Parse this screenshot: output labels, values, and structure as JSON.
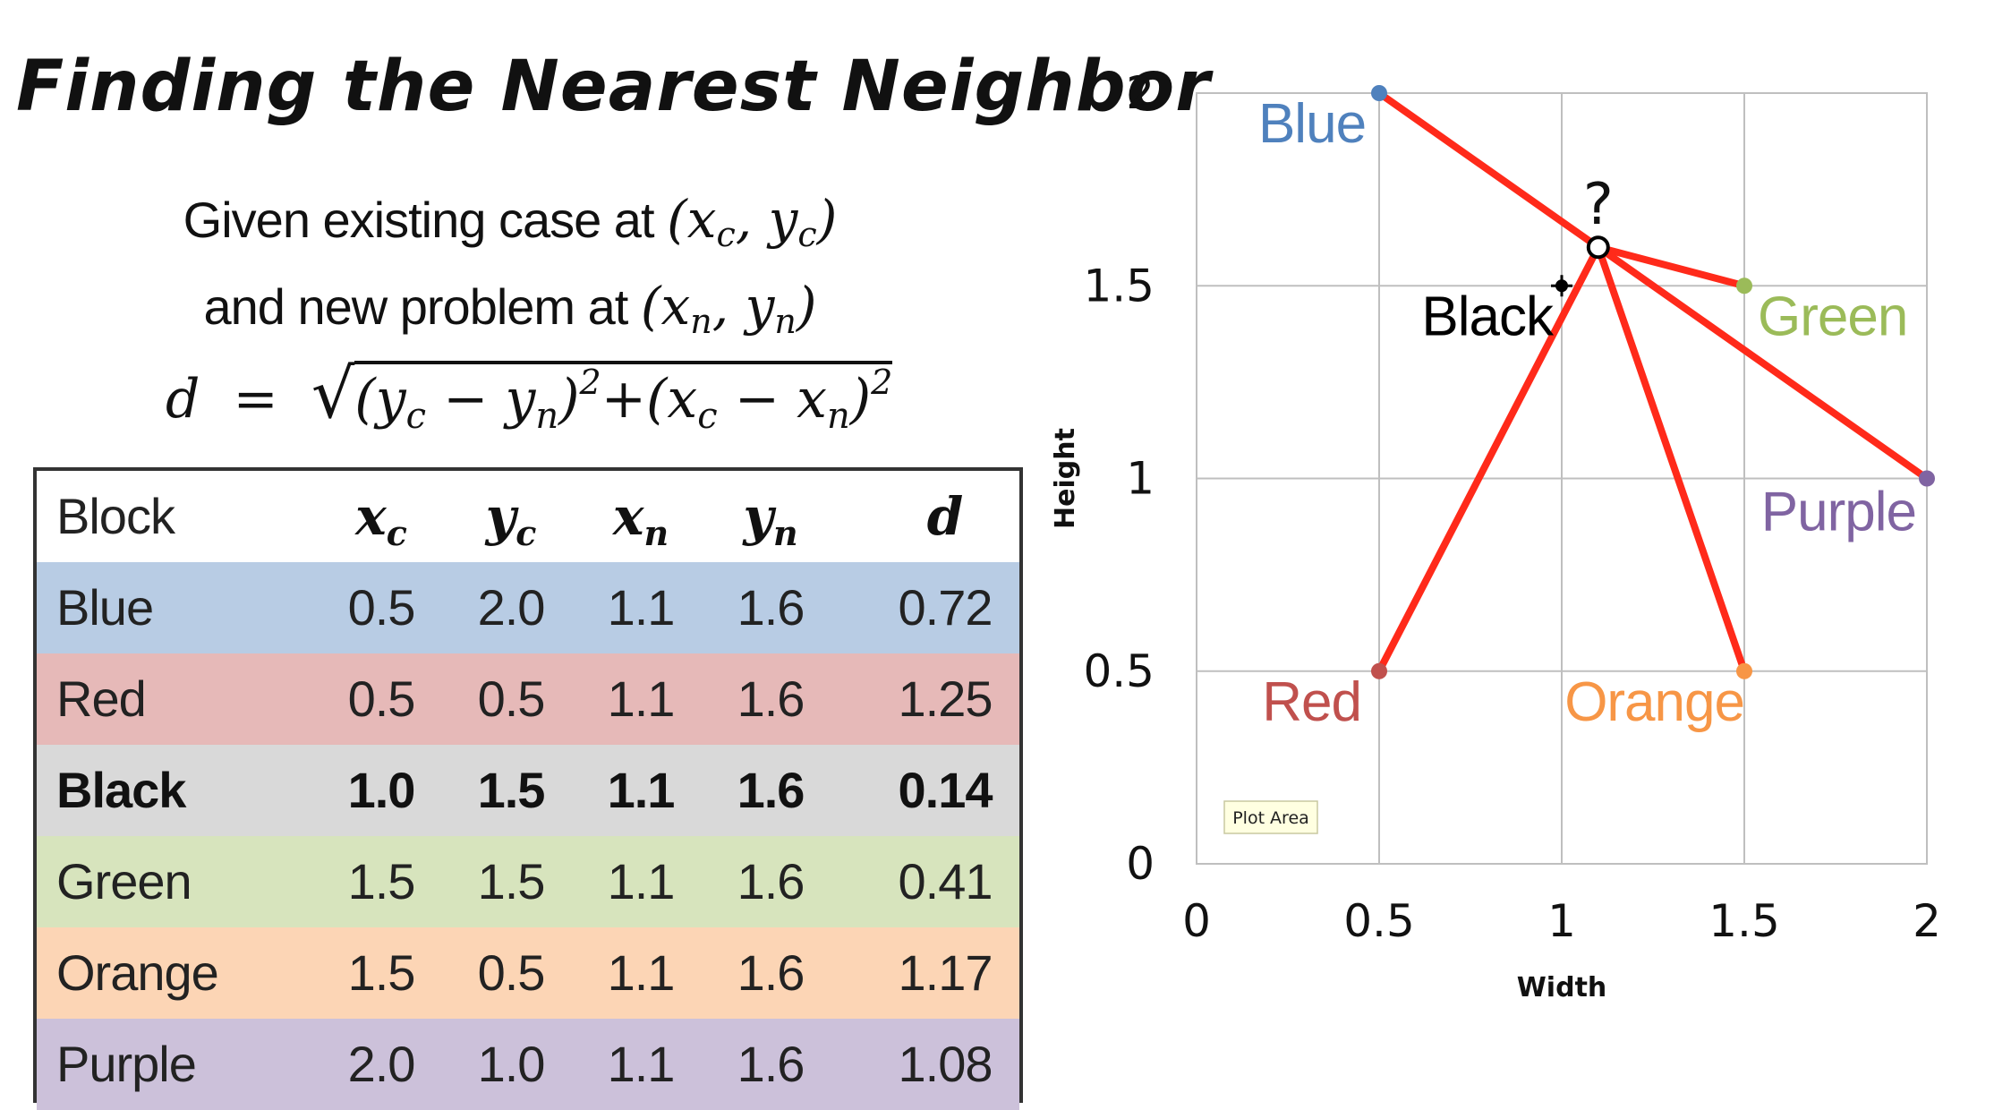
{
  "title": "Finding the Nearest Neighbor",
  "given": {
    "line1_text": "Given existing case at",
    "line2_text": "and new problem at",
    "existing_case": "(x_c, y_c)",
    "new_problem": "(x_n, y_n)"
  },
  "formula": {
    "lhs": "d",
    "eq": "=",
    "expression": "sqrt((y_c - y_n)^2 + (x_c - x_n)^2)"
  },
  "table": {
    "headers": [
      "Block",
      "x_c",
      "y_c",
      "x_n",
      "y_n",
      "d"
    ],
    "rows": [
      {
        "label": "Blue",
        "cells": [
          "0.5",
          "2.0",
          "1.1",
          "1.6",
          "0.72"
        ],
        "color": "#b8cce4",
        "bold": false
      },
      {
        "label": "Red",
        "cells": [
          "0.5",
          "0.5",
          "1.1",
          "1.6",
          "1.25"
        ],
        "color": "#e6b9b8",
        "bold": false
      },
      {
        "label": "Black",
        "cells": [
          "1.0",
          "1.5",
          "1.1",
          "1.6",
          "0.14"
        ],
        "color": "#d9d9d9",
        "bold": true
      },
      {
        "label": "Green",
        "cells": [
          "1.5",
          "1.5",
          "1.1",
          "1.6",
          "0.41"
        ],
        "color": "#d7e4bd",
        "bold": false
      },
      {
        "label": "Orange",
        "cells": [
          "1.5",
          "0.5",
          "1.1",
          "1.6",
          "1.17"
        ],
        "color": "#fcd5b5",
        "bold": false
      },
      {
        "label": "Purple",
        "cells": [
          "2.0",
          "1.0",
          "1.1",
          "1.6",
          "1.08"
        ],
        "color": "#ccc1da",
        "bold": false
      }
    ]
  },
  "chart_data": {
    "type": "scatter",
    "title": "",
    "xlabel": "Width",
    "ylabel": "Height",
    "xlim": [
      0,
      2
    ],
    "ylim": [
      0,
      2
    ],
    "xticks": [
      "0",
      "0.5",
      "1",
      "1.5",
      "2"
    ],
    "yticks": [
      "0",
      "0.5",
      "1",
      "1.5",
      "2"
    ],
    "grid": true,
    "points": [
      {
        "name": "Blue",
        "x": 0.5,
        "y": 2.0,
        "color": "#4f81bd",
        "label_color": "#4f81bd"
      },
      {
        "name": "Red",
        "x": 0.5,
        "y": 0.5,
        "color": "#c0504d",
        "label_color": "#c0504d"
      },
      {
        "name": "Black",
        "x": 1.0,
        "y": 1.5,
        "color": "#000000",
        "label_color": "#000000"
      },
      {
        "name": "Green",
        "x": 1.5,
        "y": 1.5,
        "color": "#9bbb59",
        "label_color": "#9bbb59"
      },
      {
        "name": "Orange",
        "x": 1.5,
        "y": 0.5,
        "color": "#f79646",
        "label_color": "#f79646"
      },
      {
        "name": "Purple",
        "x": 2.0,
        "y": 1.0,
        "color": "#8064a2",
        "label_color": "#8064a2"
      }
    ],
    "query_point": {
      "x": 1.1,
      "y": 1.6,
      "label": "?"
    },
    "distance_line_color": "#ff2a1a",
    "tooltip": "Plot Area"
  }
}
